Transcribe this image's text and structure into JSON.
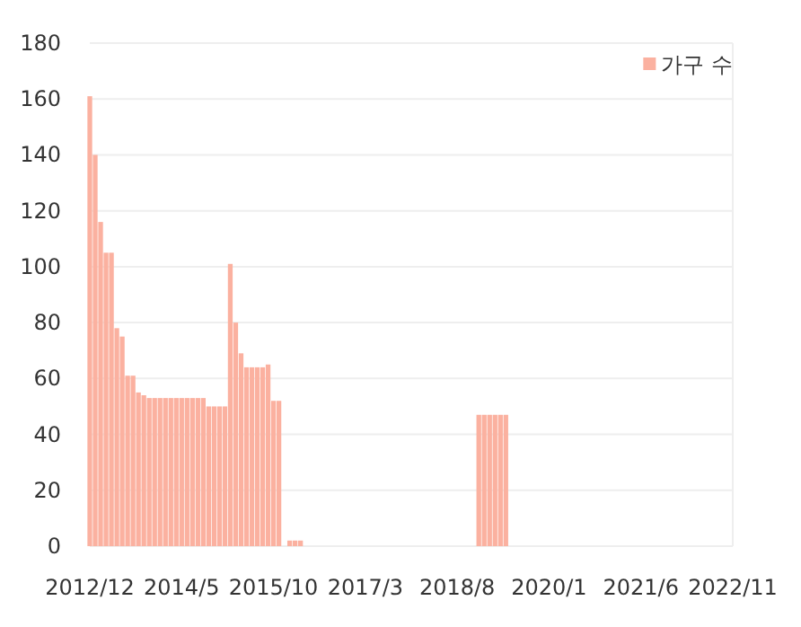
{
  "chart_data": {
    "type": "bar",
    "legend": "top right",
    "grid": "y",
    "series": [
      {
        "name": "가구 수",
        "color": "#fbb1a0",
        "x": [
          "2012-12",
          "2013-01",
          "2013-02",
          "2013-03",
          "2013-04",
          "2013-05",
          "2013-06",
          "2013-07",
          "2013-08",
          "2013-09",
          "2013-10",
          "2013-11",
          "2013-12",
          "2014-01",
          "2014-02",
          "2014-03",
          "2014-04",
          "2014-05",
          "2014-06",
          "2014-07",
          "2014-08",
          "2014-09",
          "2014-10",
          "2014-11",
          "2014-12",
          "2015-01",
          "2015-02",
          "2015-03",
          "2015-04",
          "2015-05",
          "2015-06",
          "2015-07",
          "2015-08",
          "2015-09",
          "2015-10",
          "2015-11",
          "2016-01",
          "2016-02",
          "2016-03",
          "2018-12",
          "2019-01",
          "2019-02",
          "2019-03",
          "2019-04",
          "2019-05"
        ],
        "values": [
          161,
          140,
          116,
          105,
          105,
          78,
          75,
          61,
          61,
          55,
          54,
          53,
          53,
          53,
          53,
          53,
          53,
          53,
          53,
          53,
          53,
          53,
          50,
          50,
          50,
          50,
          101,
          80,
          69,
          64,
          64,
          64,
          64,
          65,
          52,
          52,
          2,
          2,
          2,
          47,
          47,
          47,
          47,
          47,
          47
        ]
      }
    ],
    "xlim": [
      "2012-12",
      "2022-11"
    ],
    "xticks": [
      {
        "value": "2012-12",
        "label": "2012/12"
      },
      {
        "value": "2014-05",
        "label": "2014/5"
      },
      {
        "value": "2015-10",
        "label": "2015/10"
      },
      {
        "value": "2017-03",
        "label": "2017/3"
      },
      {
        "value": "2018-08",
        "label": "2018/8"
      },
      {
        "value": "2020-01",
        "label": "2020/1"
      },
      {
        "value": "2021-06",
        "label": "2021/6"
      },
      {
        "value": "2022-11",
        "label": "2022/11"
      }
    ],
    "ylim": [
      0,
      180
    ],
    "yticks": [
      0,
      20,
      40,
      60,
      80,
      100,
      120,
      140,
      160,
      180
    ]
  }
}
